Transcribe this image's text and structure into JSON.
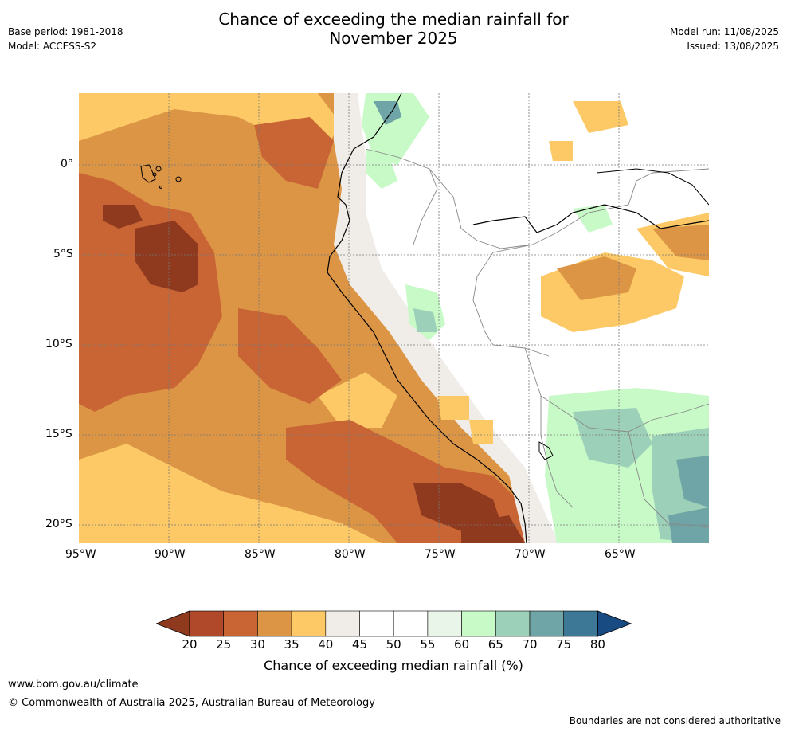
{
  "header": {
    "title_line1": "Chance of exceeding the median rainfall for",
    "title_line2": "November 2025",
    "base_period": "Base period: 1981-2018",
    "model": "Model: ACCESS-S2",
    "model_run": "Model run: 11/08/2025",
    "issued": "Issued: 13/08/2025"
  },
  "map": {
    "lat_labels": [
      "0°",
      "5°S",
      "10°S",
      "15°S",
      "20°S"
    ],
    "lon_labels": [
      "95°W",
      "90°W",
      "85°W",
      "80°W",
      "75°W",
      "70°W",
      "65°W"
    ],
    "lat_values": [
      0,
      -5,
      -10,
      -15,
      -20
    ],
    "lon_values": [
      -95,
      -90,
      -85,
      -80,
      -75,
      -70,
      -65
    ],
    "extent": {
      "lon_min": -95,
      "lon_max": -60,
      "lat_min": -21,
      "lat_max": 4
    }
  },
  "colorbar": {
    "label": "Chance of exceeding median rainfall (%)",
    "ticks": [
      "20",
      "25",
      "30",
      "35",
      "40",
      "45",
      "50",
      "55",
      "60",
      "65",
      "70",
      "75",
      "80"
    ],
    "colors": [
      "#8f3a1e",
      "#b0482a",
      "#c96535",
      "#dc9545",
      "#fdc966",
      "#f0ece8",
      "#ffffff",
      "#ffffff",
      "#eaf5ea",
      "#c8fac8",
      "#9dd0b8",
      "#6fa5a6",
      "#3d7896",
      "#174b82"
    ]
  },
  "footer": {
    "url": "www.bom.gov.au/climate",
    "copyright": "© Commonwealth of Australia 2025, Australian Bureau of Meteorology",
    "disclaimer": "Boundaries are not considered authoritative"
  }
}
